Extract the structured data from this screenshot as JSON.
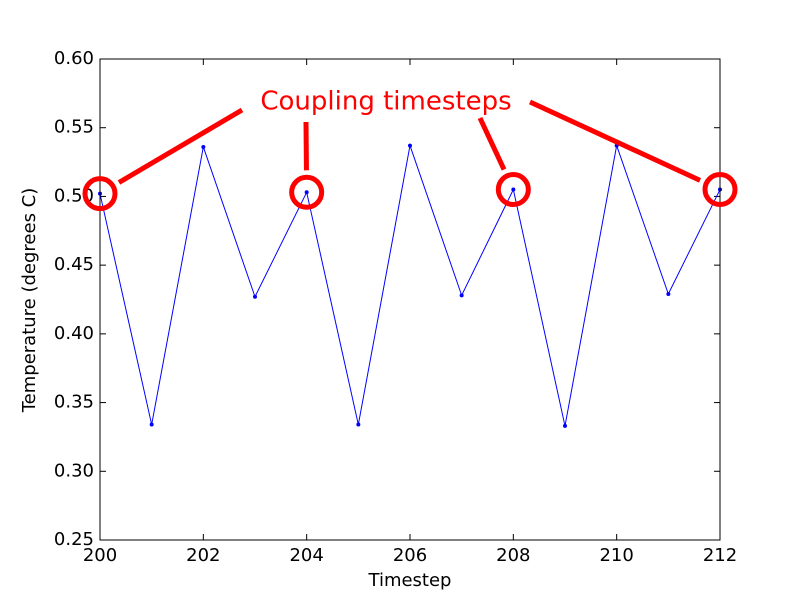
{
  "chart_data": {
    "type": "line",
    "xlabel": "Timestep",
    "ylabel": "Temperature (degrees C)",
    "x": [
      200,
      201,
      202,
      203,
      204,
      205,
      206,
      207,
      208,
      209,
      210,
      211,
      212
    ],
    "series": [
      {
        "name": "Temperature",
        "color": "#0000ff",
        "values": [
          0.502,
          0.334,
          0.536,
          0.427,
          0.503,
          0.334,
          0.537,
          0.428,
          0.505,
          0.333,
          0.537,
          0.429,
          0.505
        ]
      }
    ],
    "xlim": [
      200,
      212
    ],
    "xticks": [
      200,
      202,
      204,
      206,
      208,
      210,
      212
    ],
    "ylim": [
      0.25,
      0.6
    ],
    "yticks": [
      0.25,
      {
        "value": 0.3,
        "label": "0.30"
      },
      0.35,
      {
        "value": 0.4,
        "label": "0.40"
      },
      0.45,
      {
        "value": 0.5,
        "label": "0.50"
      },
      0.55,
      {
        "value": 0.6,
        "label": "0.60"
      }
    ],
    "annotation": {
      "text": "Coupling timesteps",
      "color": "#ff0000",
      "x": [
        200,
        204,
        208,
        212
      ]
    }
  }
}
